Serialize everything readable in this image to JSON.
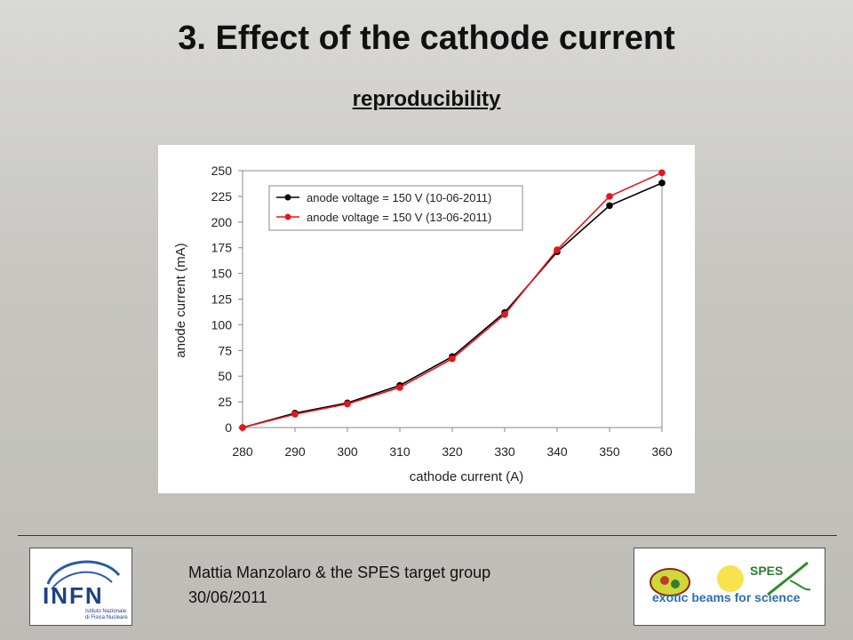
{
  "slide": {
    "title": "3. Effect of the cathode current",
    "subtitle": "reproducibility"
  },
  "footer": {
    "author": "Mattia Manzolaro & the SPES target group",
    "date": "30/06/2011"
  },
  "logos": {
    "infn": {
      "name": "INFN",
      "line1": "Istituto Nazionale",
      "line2": "di Fisica Nucleare"
    },
    "spes": {
      "name": "SPES",
      "tagline": "exotic beams for science"
    }
  },
  "chart_data": {
    "type": "line",
    "xlabel": "cathode current (A)",
    "ylabel": "anode current (mA)",
    "x": [
      280,
      290,
      300,
      310,
      320,
      330,
      340,
      350,
      360
    ],
    "xticks": [
      "280",
      "290",
      "300",
      "310",
      "320",
      "330",
      "340",
      "350",
      "360"
    ],
    "yticks": [
      "0",
      "25",
      "50",
      "75",
      "100",
      "125",
      "150",
      "175",
      "200",
      "225",
      "250"
    ],
    "xlim": [
      280,
      360
    ],
    "ylim": [
      0,
      250
    ],
    "grid": false,
    "legend": "top-left",
    "series": [
      {
        "name": "anode voltage = 150 V (10-06-2011)",
        "color": "#000000",
        "values": [
          0,
          14,
          24,
          41,
          69,
          112,
          171,
          216,
          238
        ]
      },
      {
        "name": "anode voltage = 150 V (13-06-2011)",
        "color": "#e8141b",
        "values": [
          0,
          13,
          23,
          39,
          67,
          110,
          173,
          225,
          248
        ]
      }
    ]
  }
}
